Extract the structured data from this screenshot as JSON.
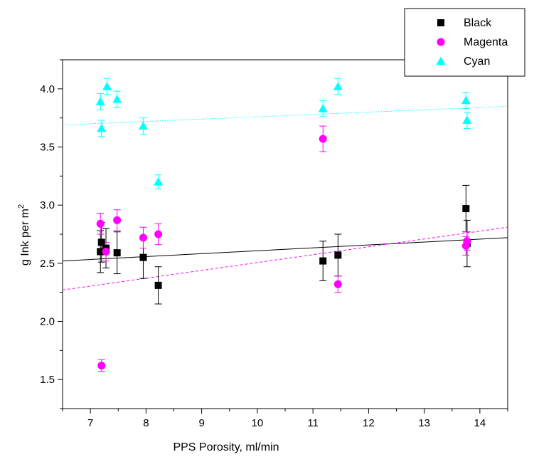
{
  "chart_data": {
    "type": "scatter",
    "xlabel": "PPS Porosity, ml/min",
    "ylabel": {
      "main": "g Ink per m",
      "sup": "2"
    },
    "xlim": [
      6.5,
      14.5
    ],
    "ylim": [
      1.25,
      4.25
    ],
    "xticks": [
      "7",
      "8",
      "9",
      "10",
      "11",
      "12",
      "13",
      "14"
    ],
    "yticks": [
      "1.5",
      "2.0",
      "2.5",
      "3.0",
      "3.5",
      "4.0"
    ],
    "grid": false,
    "legend_position": "top-right",
    "series": [
      {
        "name": "Black",
        "marker": "square",
        "color": "#000000",
        "points": [
          {
            "x": 7.18,
            "y": 2.6,
            "err": 0.18
          },
          {
            "x": 7.2,
            "y": 2.68,
            "err": 0.17
          },
          {
            "x": 7.28,
            "y": 2.63,
            "err": 0.17
          },
          {
            "x": 7.48,
            "y": 2.59,
            "err": 0.18
          },
          {
            "x": 7.95,
            "y": 2.55,
            "err": 0.18
          },
          {
            "x": 8.22,
            "y": 2.31,
            "err": 0.16
          },
          {
            "x": 11.18,
            "y": 2.52,
            "err": 0.17
          },
          {
            "x": 11.45,
            "y": 2.57,
            "err": 0.18
          },
          {
            "x": 13.75,
            "y": 2.97,
            "err": 0.2
          },
          {
            "x": 13.77,
            "y": 2.67,
            "err": 0.2
          }
        ],
        "trend": {
          "style": "solid",
          "start": [
            6.5,
            2.52
          ],
          "end": [
            14.5,
            2.72
          ]
        }
      },
      {
        "name": "Magenta",
        "marker": "circle",
        "color": "#ff00ff",
        "points": [
          {
            "x": 7.18,
            "y": 2.84,
            "err": 0.09
          },
          {
            "x": 7.2,
            "y": 1.62,
            "err": 0.05
          },
          {
            "x": 7.28,
            "y": 2.6,
            "err": 0.08
          },
          {
            "x": 7.48,
            "y": 2.87,
            "err": 0.09
          },
          {
            "x": 7.95,
            "y": 2.72,
            "err": 0.09
          },
          {
            "x": 8.22,
            "y": 2.75,
            "err": 0.09
          },
          {
            "x": 11.18,
            "y": 3.57,
            "err": 0.11
          },
          {
            "x": 11.45,
            "y": 2.32,
            "err": 0.07
          },
          {
            "x": 13.75,
            "y": 2.65,
            "err": 0.08
          },
          {
            "x": 13.77,
            "y": 2.69,
            "err": 0.08
          }
        ],
        "trend": {
          "style": "dashed",
          "start": [
            6.5,
            2.27
          ],
          "end": [
            14.5,
            2.81
          ]
        }
      },
      {
        "name": "Cyan",
        "marker": "triangle",
        "color": "#00ffff",
        "points": [
          {
            "x": 7.18,
            "y": 3.89,
            "err": 0.07
          },
          {
            "x": 7.2,
            "y": 3.66,
            "err": 0.07
          },
          {
            "x": 7.3,
            "y": 4.02,
            "err": 0.07
          },
          {
            "x": 7.48,
            "y": 3.91,
            "err": 0.07
          },
          {
            "x": 7.95,
            "y": 3.68,
            "err": 0.07
          },
          {
            "x": 8.22,
            "y": 3.2,
            "err": 0.06
          },
          {
            "x": 11.18,
            "y": 3.83,
            "err": 0.07
          },
          {
            "x": 11.45,
            "y": 4.02,
            "err": 0.07
          },
          {
            "x": 13.75,
            "y": 3.9,
            "err": 0.07
          },
          {
            "x": 13.77,
            "y": 3.73,
            "err": 0.07
          }
        ],
        "trend": {
          "style": "dotted",
          "start": [
            6.5,
            3.69
          ],
          "end": [
            14.5,
            3.85
          ]
        }
      }
    ]
  }
}
